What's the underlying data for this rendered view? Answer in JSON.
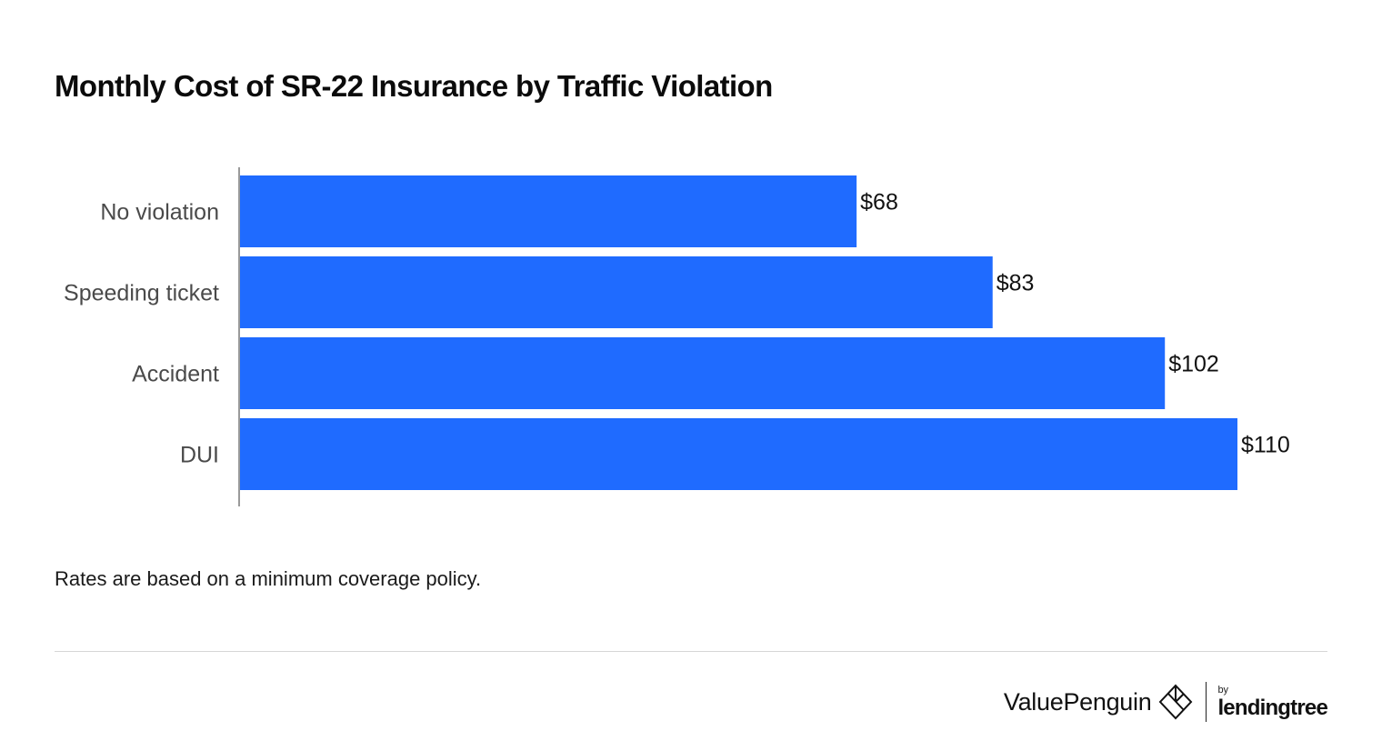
{
  "header": {
    "title": "Monthly Cost of SR-22 Insurance by Traffic Violation"
  },
  "footnote": "Rates are based on a minimum coverage policy.",
  "branding": {
    "brand_name": "ValuePenguin",
    "by_label": "by",
    "partner_name": "lendingtree"
  },
  "colors": {
    "bar": "#1f6bff",
    "axis": "#9a9a9a",
    "divider": "#d6d6d6"
  },
  "chart_data": {
    "type": "bar",
    "orientation": "horizontal",
    "title": "Monthly Cost of SR-22 Insurance by Traffic Violation",
    "categories": [
      "No violation",
      "Speeding ticket",
      "Accident",
      "DUI"
    ],
    "values": [
      68,
      83,
      102,
      110
    ],
    "value_labels": [
      "$68",
      "$83",
      "$102",
      "$110"
    ],
    "xlabel": "",
    "ylabel": "",
    "xlim": [
      0,
      110
    ],
    "grid": false,
    "legend": "none"
  }
}
